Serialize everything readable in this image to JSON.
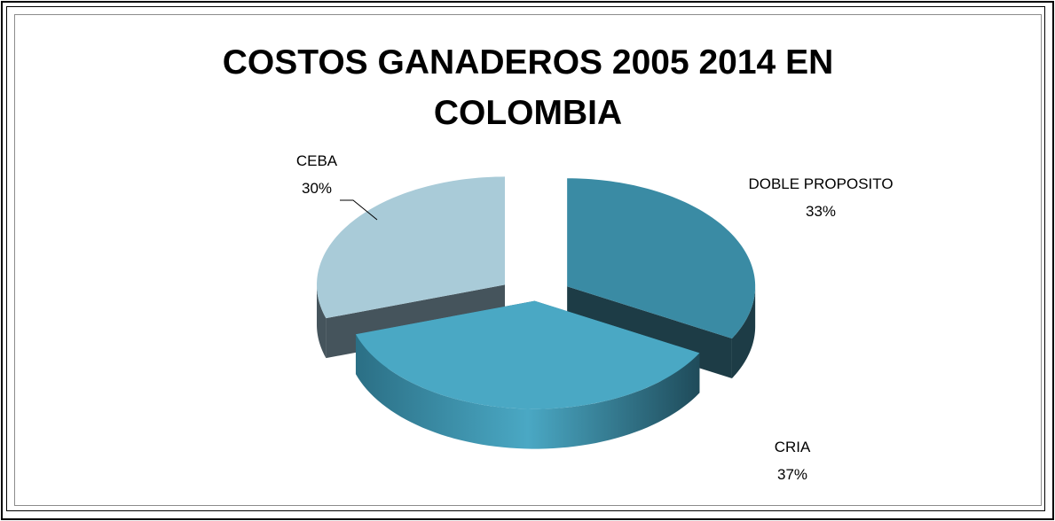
{
  "chart_data": {
    "type": "pie",
    "title": "COSTOS GANADEROS 2005 2014 EN COLOMBIA",
    "categories": [
      "DOBLE PROPOSITO",
      "CRIA",
      "CEBA"
    ],
    "values": [
      33,
      37,
      30
    ],
    "value_labels": [
      "33%",
      "37%",
      "30%"
    ],
    "colors": [
      "#3a8ba4",
      "#4aa8c4",
      "#a9cbd8"
    ]
  }
}
